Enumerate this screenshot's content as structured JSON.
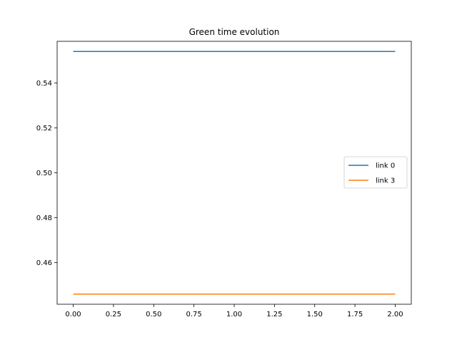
{
  "chart_data": {
    "type": "line",
    "title": "Green time evolution",
    "xlabel": "",
    "ylabel": "",
    "x": [
      0.0,
      0.5,
      1.0,
      1.5,
      2.0
    ],
    "xlim": [
      -0.1,
      2.1
    ],
    "ylim": [
      0.4415,
      0.5585
    ],
    "xticks": [
      "0.00",
      "0.25",
      "0.50",
      "0.75",
      "1.00",
      "1.25",
      "1.50",
      "1.75",
      "2.00"
    ],
    "yticks": [
      "0.46",
      "0.48",
      "0.50",
      "0.52",
      "0.54"
    ],
    "grid": false,
    "legend_position": "center-right",
    "series": [
      {
        "name": "link 0",
        "color": "#1f77b4",
        "values": [
          0.554,
          0.554,
          0.554,
          0.554,
          0.554
        ]
      },
      {
        "name": "link 3",
        "color": "#ff7f0e",
        "values": [
          0.446,
          0.446,
          0.446,
          0.446,
          0.446
        ]
      }
    ]
  }
}
